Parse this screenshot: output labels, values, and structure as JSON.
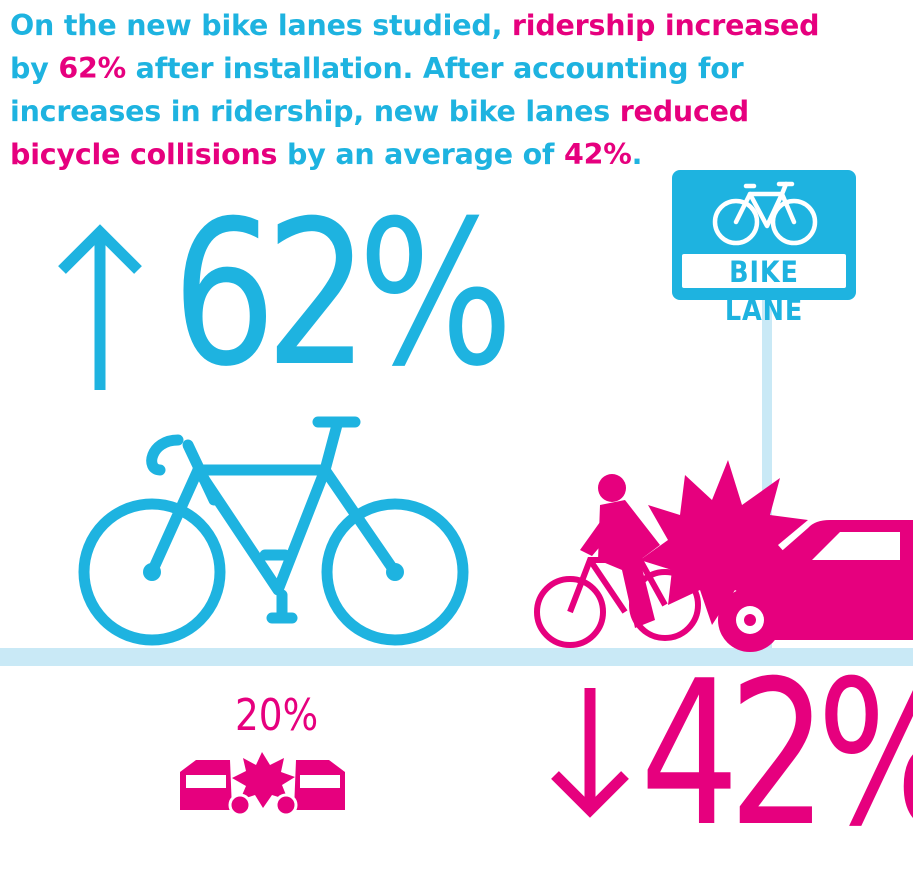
{
  "headline": {
    "l1a": "On the new bike lanes studied, ",
    "l1b": "ridership increased",
    "l2a": "by ",
    "l2b": "62%",
    "l2c": " after installation. After accounting for",
    "l3a": "increases in ridership, new bike lanes ",
    "l3b": "reduced",
    "l4a": "bicycle collisions",
    "l4b": " by an average of ",
    "l4c": "42%",
    "l4d": "."
  },
  "ridership_stat": "62%",
  "collision_stat": "42%",
  "baseline_stat": "20%",
  "sign_label": "BIKE LANE",
  "colors": {
    "blue": "#1eb3e0",
    "pink": "#e6007e",
    "light_blue": "#c9e9f6"
  },
  "icons": [
    "up-arrow-icon",
    "bicycle-icon",
    "bike-lane-sign-icon",
    "crash-icon",
    "down-arrow-icon",
    "car-crash-icon"
  ]
}
